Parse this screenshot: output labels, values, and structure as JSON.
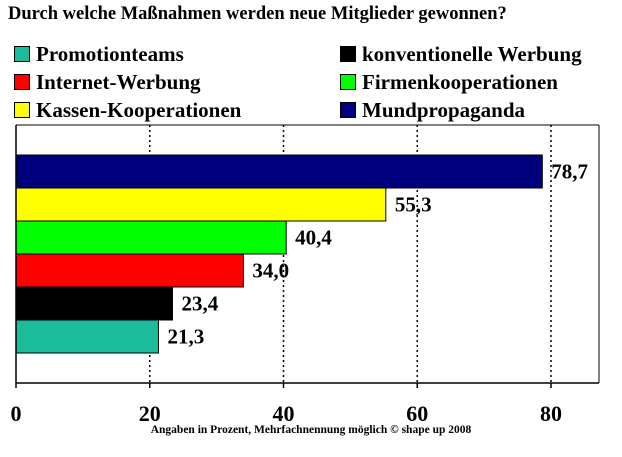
{
  "chart_data": {
    "type": "bar",
    "orientation": "horizontal",
    "title": "Durch welche Maßnahmen werden neue Mitglieder gewonnen?",
    "footnote": "Angaben in Prozent, Mehrfachnennung möglich © shape up 2008",
    "categories": [
      "Promotionteams",
      "konventionelle Werbung",
      "Internet-Werbung",
      "Firmenkooperationen",
      "Kassen-Kooperationen",
      "Mundpropaganda"
    ],
    "values": [
      21.3,
      23.4,
      34.0,
      40.4,
      55.3,
      78.7
    ],
    "value_labels": [
      "21,3",
      "23,4",
      "34,0",
      "40,4",
      "55,3",
      "78,7"
    ],
    "colors": [
      "#1ABC9C",
      "#000000",
      "#FF0000",
      "#00FF00",
      "#FFFF00",
      "#00007F"
    ],
    "xlim": [
      0,
      88
    ],
    "xticks": [
      0,
      20,
      40,
      60,
      80
    ],
    "xtick_labels": [
      "0",
      "20",
      "40",
      "60",
      "80"
    ],
    "grid": "vertical-dotted",
    "legend_position": "top"
  }
}
